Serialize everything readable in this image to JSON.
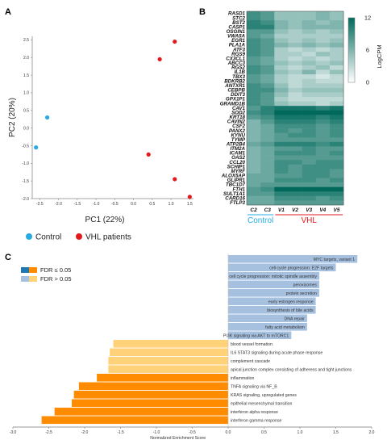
{
  "panels": {
    "a": "A",
    "b": "B",
    "c": "C"
  },
  "chart_data": [
    {
      "type": "scatter",
      "panel": "A",
      "xlabel": "PC1  (22%)",
      "ylabel": "PC2  (20%)",
      "xlim": [
        -2.7,
        1.6
      ],
      "ylim": [
        -2.0,
        2.6
      ],
      "xticks": [
        "-2.5",
        "-2.0",
        "-1.5",
        "-1.0",
        "-0.5",
        "0.0",
        "0.5",
        "1.0",
        "1.5"
      ],
      "yticks": [
        "2.5",
        "2.0",
        "1.5",
        "1.0",
        "0.5",
        "0.0",
        "-0.5",
        "-1.0",
        "-1.5",
        "-2.0"
      ],
      "series": [
        {
          "name": "Control",
          "color": "#29abe2",
          "points": [
            [
              -2.3,
              0.3
            ],
            [
              -2.6,
              -0.55
            ]
          ]
        },
        {
          "name": "VHL patients",
          "color": "#e31a1c",
          "points": [
            [
              1.1,
              2.45
            ],
            [
              0.7,
              1.95
            ],
            [
              0.4,
              -0.75
            ],
            [
              1.1,
              -1.45
            ],
            [
              1.5,
              -1.95
            ]
          ]
        }
      ],
      "legend_placement": "bottom"
    },
    {
      "type": "heatmap",
      "panel": "B",
      "columns": [
        "C2",
        "C3",
        "V1",
        "V2",
        "V3",
        "V4",
        "V5"
      ],
      "groups": [
        {
          "label": "Control",
          "color": "#29abe2",
          "span": [
            0,
            1
          ]
        },
        {
          "label": "VHL",
          "color": "#e31a1c",
          "span": [
            2,
            6
          ]
        }
      ],
      "colorbar": {
        "label": "LogCPM",
        "ticks": [
          "12",
          "6",
          "0"
        ],
        "min": 0,
        "max": 12,
        "low_color": "#ffffff",
        "high_color": "#00695c"
      },
      "rows": [
        "RASD1",
        "STC2",
        "BST2",
        "CASP1",
        "OSGIN1",
        "VWA5A",
        "EGR1",
        "PLA1A",
        "ATF3",
        "RGS9",
        "CX3CL1",
        "ABCC3",
        "RGS2",
        "IL1B",
        "TBX3",
        "BDKRB2",
        "ANTXR1",
        "CEBPB",
        "DDIT3",
        "GPX1P1",
        "GRAMD1B",
        "CAV1",
        "SOD2",
        "KRT18",
        "CAVIN2",
        "CSF2",
        "PANX2",
        "KYNU",
        "TYMP",
        "ATP2B4",
        "ITM2A",
        "ICAM1",
        "OAS2",
        "CCL20",
        "SCHIP1",
        "MYRF",
        "ALOX5AP",
        "GLIPR1",
        "TBC1D7",
        "FTH1",
        "SULT1A1",
        "CARD16",
        "FTLP3"
      ],
      "values": [
        [
          9,
          8,
          5,
          5,
          5,
          6,
          5
        ],
        [
          9,
          8,
          5,
          5,
          5,
          6,
          5
        ],
        [
          10,
          9,
          6,
          5,
          6,
          5,
          6
        ],
        [
          10,
          10,
          6,
          5,
          6,
          6,
          6
        ],
        [
          8,
          8,
          5,
          4,
          5,
          4,
          5
        ],
        [
          8,
          7,
          4,
          4,
          4,
          4,
          4
        ],
        [
          9,
          8,
          5,
          4,
          5,
          4,
          5
        ],
        [
          9,
          8,
          6,
          5,
          6,
          5,
          6
        ],
        [
          9,
          8,
          4,
          3,
          4,
          3,
          4
        ],
        [
          9,
          8,
          4,
          4,
          3,
          5,
          4
        ],
        [
          8,
          7,
          4,
          3,
          4,
          3,
          4
        ],
        [
          8,
          7,
          5,
          4,
          5,
          4,
          5
        ],
        [
          9,
          8,
          4,
          3,
          4,
          5,
          3
        ],
        [
          9,
          8,
          5,
          4,
          6,
          3,
          5
        ],
        [
          8,
          7,
          4,
          3,
          3,
          2,
          3
        ],
        [
          8,
          7,
          4,
          3,
          4,
          3,
          3
        ],
        [
          9,
          8,
          5,
          3,
          4,
          4,
          4
        ],
        [
          9,
          9,
          6,
          4,
          5,
          5,
          5
        ],
        [
          9,
          8,
          5,
          3,
          4,
          4,
          4
        ],
        [
          9,
          8,
          4,
          3,
          3,
          3,
          3
        ],
        [
          9,
          8,
          5,
          4,
          4,
          3,
          4
        ],
        [
          8,
          10,
          11,
          11,
          11,
          10,
          11
        ],
        [
          9,
          10,
          12,
          12,
          12,
          12,
          12
        ],
        [
          8,
          9,
          11,
          11,
          11,
          10,
          11
        ],
        [
          6,
          8,
          10,
          10,
          10,
          9,
          10
        ],
        [
          6,
          7,
          9,
          9,
          9,
          8,
          9
        ],
        [
          6,
          7,
          9,
          8,
          9,
          8,
          9
        ],
        [
          6,
          7,
          8,
          9,
          9,
          8,
          9
        ],
        [
          6,
          7,
          8,
          8,
          8,
          8,
          8
        ],
        [
          7,
          8,
          10,
          10,
          10,
          9,
          10
        ],
        [
          6,
          7,
          8,
          8,
          9,
          8,
          8
        ],
        [
          6,
          7,
          9,
          9,
          9,
          8,
          9
        ],
        [
          6,
          7,
          8,
          8,
          8,
          8,
          8
        ],
        [
          6,
          7,
          9,
          9,
          8,
          9,
          9
        ],
        [
          6,
          7,
          9,
          8,
          9,
          9,
          9
        ],
        [
          6,
          7,
          9,
          8,
          9,
          9,
          8
        ],
        [
          7,
          7,
          8,
          8,
          9,
          9,
          8
        ],
        [
          7,
          7,
          9,
          9,
          9,
          8,
          9
        ],
        [
          7,
          8,
          8,
          8,
          8,
          8,
          8
        ],
        [
          8,
          9,
          12,
          12,
          12,
          12,
          12
        ],
        [
          8,
          8,
          10,
          10,
          10,
          10,
          10
        ],
        [
          7,
          7,
          9,
          9,
          9,
          8,
          9
        ],
        [
          7,
          7,
          8,
          8,
          8,
          8,
          8
        ]
      ]
    },
    {
      "type": "bar",
      "panel": "C",
      "orientation": "horizontal",
      "xlabel": "Normalized Enrichment Score",
      "xlim": [
        -3.0,
        2.0
      ],
      "xticks": [
        "-3.0",
        "-2.5",
        "-2.0",
        "-1.5",
        "-1.0",
        "-0.5",
        "0.0",
        "0.5",
        "1.0",
        "1.5",
        "2.0"
      ],
      "legend": [
        {
          "label": "FDR ≤ 0.05",
          "colors": [
            "#1f78b4",
            "#ff8c00"
          ]
        },
        {
          "label": "FDR > 0.05",
          "colors": [
            "#a6c0e0",
            "#ffd27a"
          ]
        }
      ],
      "categories": [
        "MYC targets, variant 1",
        "cell cycle progression: E2F targets",
        "cell cycle progression: mitotic spindle assembly",
        "peroxisomes",
        "protein secretion",
        "early estrogen response",
        "biosynthesis of bile acids",
        "DNA repair",
        "fatty acid metabolism",
        "PI3K signaling via AKT to mTORC1",
        "blood vessel formation",
        "IL6 STAT3 signaling during acute phase response",
        "complement cascade",
        "apical junction complex consisting of adherens and tight junctions",
        "inflammation",
        "TNFA signaling via NF_B",
        "KRAS signaling, upregulated genes",
        "epithelial mesenchymal transition",
        "interferon alpha response",
        "interferon gamma response"
      ],
      "values": [
        1.8,
        1.5,
        1.27,
        1.27,
        1.27,
        1.22,
        1.22,
        1.1,
        1.1,
        0.88,
        -1.6,
        -1.65,
        -1.67,
        -1.67,
        -1.83,
        -2.08,
        -2.15,
        -2.18,
        -2.42,
        -2.6
      ],
      "fdr_significant": [
        false,
        false,
        false,
        false,
        false,
        false,
        false,
        false,
        false,
        false,
        false,
        false,
        false,
        false,
        true,
        true,
        true,
        true,
        true,
        true
      ]
    }
  ]
}
